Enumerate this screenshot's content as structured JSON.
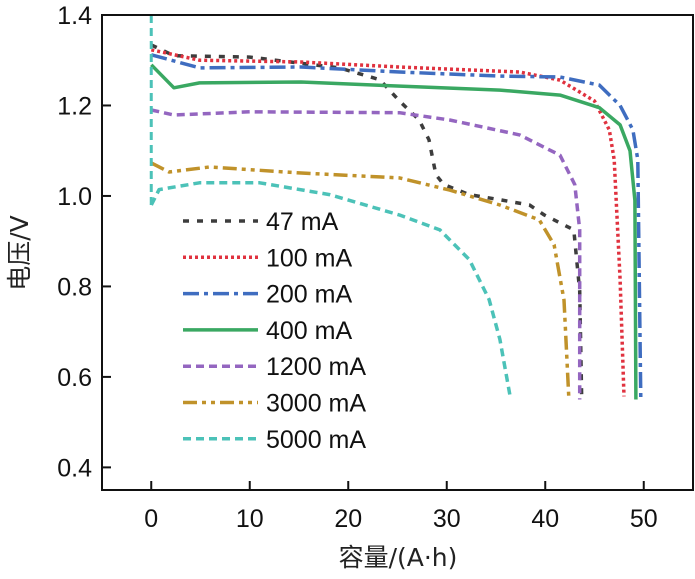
{
  "chart_data": {
    "type": "line",
    "title": "",
    "xlabel": "容量/(A·h)",
    "ylabel": "电压/V",
    "xlim": [
      -5,
      55
    ],
    "ylim": [
      0.35,
      1.4
    ],
    "xticks": [
      0,
      10,
      20,
      30,
      40,
      50
    ],
    "xtick_labels": [
      "0",
      "10",
      "20",
      "30",
      "40",
      "50"
    ],
    "yticks": [
      0.4,
      0.6,
      0.8,
      1.0,
      1.2,
      1.4
    ],
    "ytick_labels": [
      "0.4",
      "0.6",
      "0.8",
      "1.0",
      "1.2",
      "1.4"
    ],
    "grid": false,
    "legend_position": "center-left",
    "series": [
      {
        "name": "47 mA",
        "color": "#3d3d3d",
        "dash": "dotted-dash",
        "x": [
          0,
          2.3,
          10,
          19.1,
          23.2,
          25.2,
          27.2,
          28.2,
          28.9,
          29.7,
          32.3,
          35.3,
          38.4,
          39.9,
          42.9,
          43.5,
          43.7
        ],
        "y": [
          1.334,
          1.31,
          1.307,
          1.283,
          1.257,
          1.21,
          1.168,
          1.124,
          1.047,
          1.025,
          1.003,
          0.992,
          0.98,
          0.958,
          0.925,
          0.79,
          0.55
        ]
      },
      {
        "name": "100 mA",
        "color": "#e0323f",
        "dash": "dotted",
        "x": [
          0,
          4.9,
          15.2,
          25.2,
          37.4,
          41.5,
          45.0,
          46.5,
          47.0,
          47.6,
          48.0
        ],
        "y": [
          1.323,
          1.3,
          1.296,
          1.285,
          1.274,
          1.256,
          1.21,
          1.146,
          1.08,
          0.815,
          0.557
        ]
      },
      {
        "name": "200 mA",
        "color": "#3f6dc0",
        "dash": "dash-dot",
        "x": [
          0,
          4.9,
          15.2,
          25.2,
          35.4,
          41.5,
          45.5,
          47.6,
          48.9,
          49.4,
          49.7
        ],
        "y": [
          1.312,
          1.283,
          1.285,
          1.274,
          1.265,
          1.263,
          1.245,
          1.2,
          1.146,
          1.08,
          0.55
        ]
      },
      {
        "name": "400 mA",
        "color": "#3aa862",
        "dash": "solid",
        "x": [
          0,
          2.3,
          4.9,
          15.2,
          27.2,
          35.4,
          41.5,
          45.5,
          47.6,
          48.6,
          49.1,
          49.2
        ],
        "y": [
          1.29,
          1.239,
          1.25,
          1.252,
          1.241,
          1.234,
          1.223,
          1.195,
          1.157,
          1.1,
          0.99,
          0.55
        ]
      },
      {
        "name": "1200 mA",
        "color": "#9466c0",
        "dash": "dashed",
        "x": [
          0,
          2.3,
          10,
          25.2,
          30.3,
          37.4,
          41.5,
          43.0,
          43.5,
          43.5
        ],
        "y": [
          1.19,
          1.179,
          1.186,
          1.184,
          1.168,
          1.135,
          1.09,
          1.025,
          0.925,
          0.55
        ]
      },
      {
        "name": "3000 mA",
        "color": "#c0922a",
        "dash": "dash-dot-dot",
        "x": [
          0,
          1.8,
          5.9,
          15.0,
          25.2,
          30.3,
          35.4,
          39.4,
          40.9,
          41.9,
          42.4
        ],
        "y": [
          1.073,
          1.053,
          1.064,
          1.051,
          1.04,
          1.013,
          0.98,
          0.947,
          0.892,
          0.77,
          0.55
        ]
      },
      {
        "name": "5000 mA",
        "color": "#4cc2b8",
        "dash": "dashed",
        "x": [
          0,
          0.8,
          4.9,
          11.0,
          18.1,
          25.2,
          29.3,
          32.3,
          34.3,
          35.4,
          36.4
        ],
        "y": [
          0.98,
          1.014,
          1.029,
          1.029,
          1.003,
          0.958,
          0.925,
          0.859,
          0.771,
          0.683,
          0.561
        ]
      }
    ]
  }
}
